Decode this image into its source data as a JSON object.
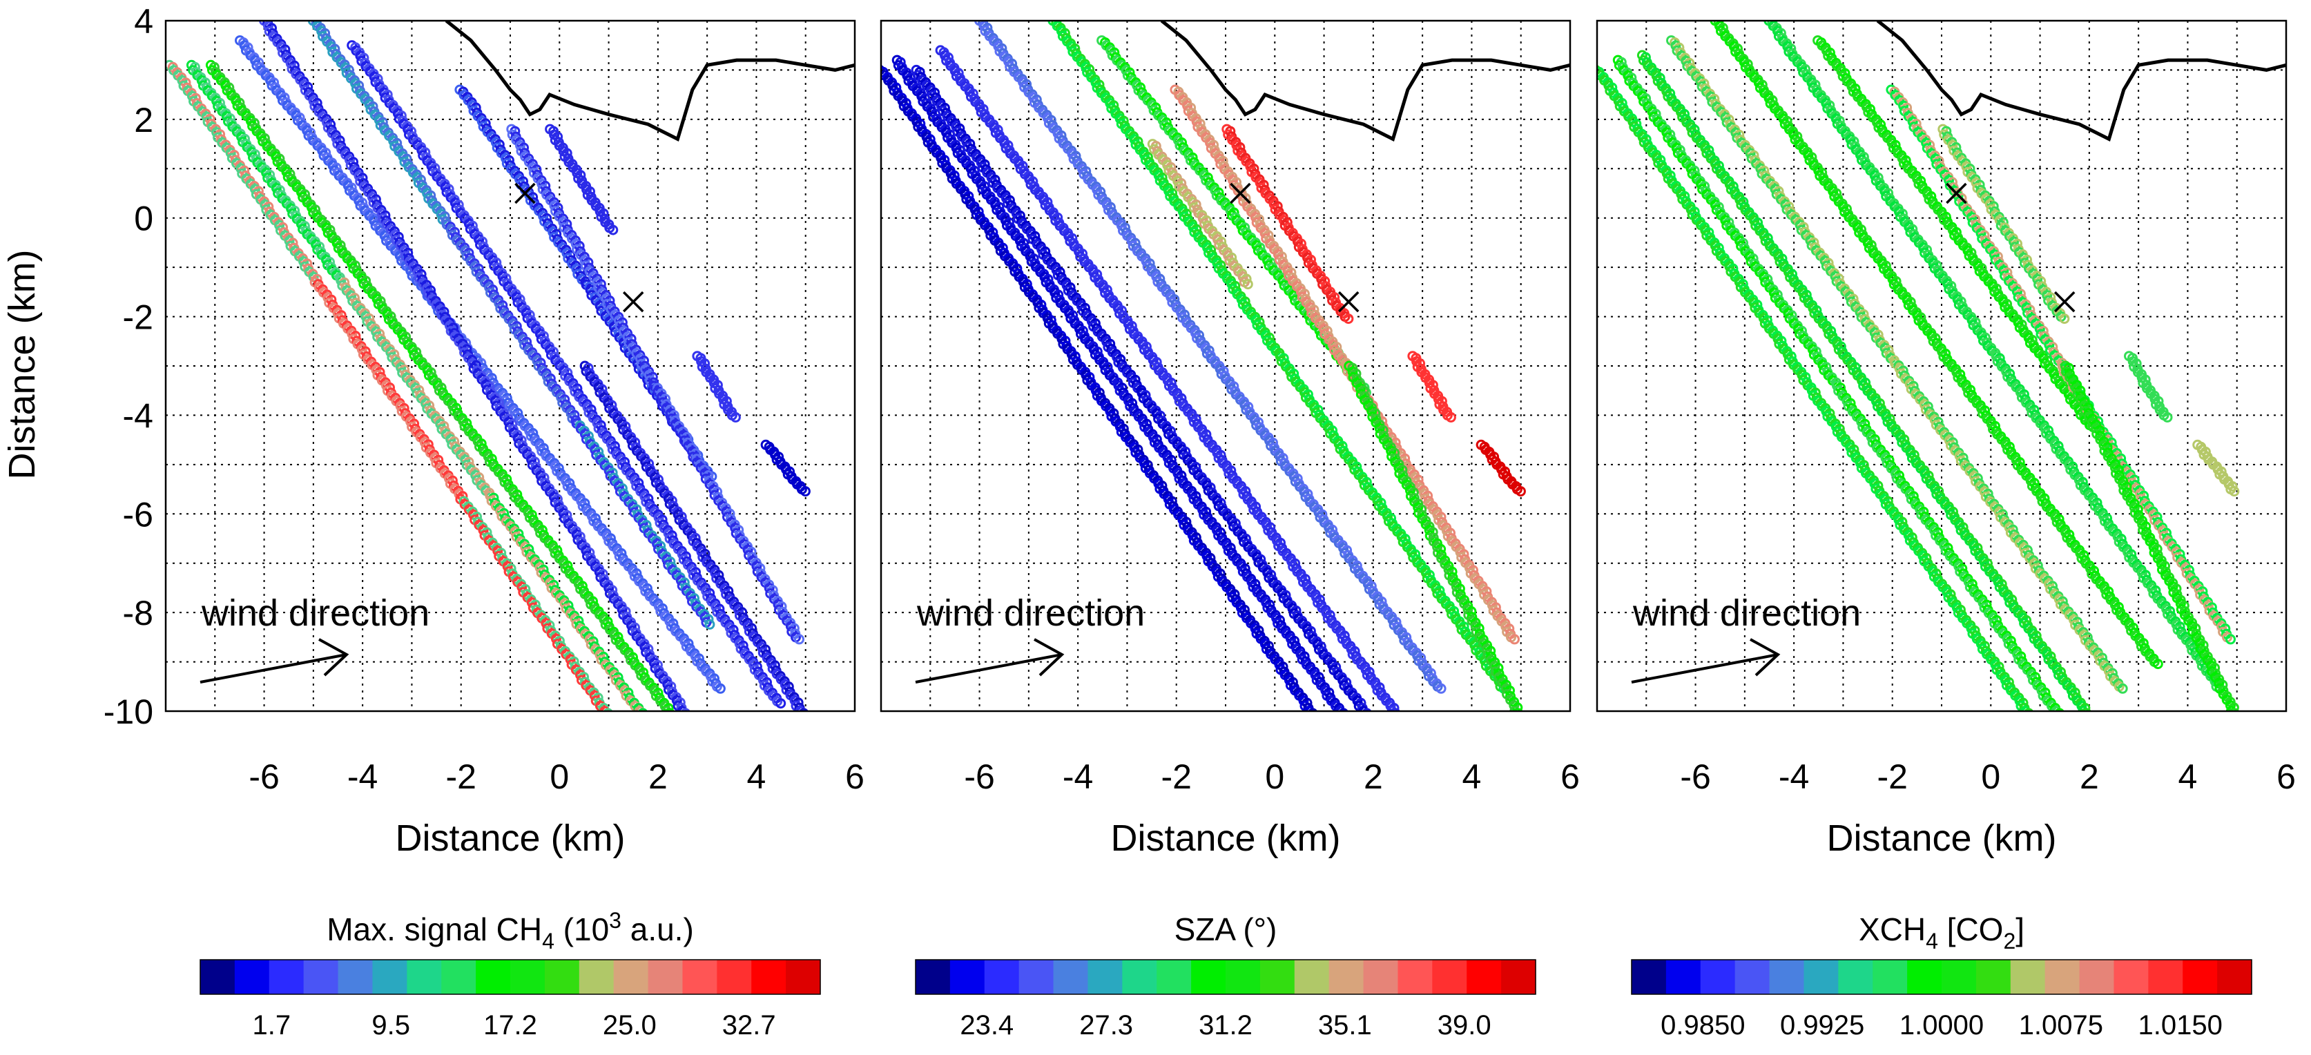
{
  "chart_data": [
    {
      "type": "scatter",
      "panel": "left",
      "xlabel": "Distance (km)",
      "ylabel": "Distance (km)",
      "xlim": [
        -8,
        6
      ],
      "ylim": [
        -10,
        4
      ],
      "xticks": [
        "-6",
        "-4",
        "-2",
        "0",
        "2",
        "4",
        "6"
      ],
      "yticks": [
        "4",
        "2",
        "0",
        "-2",
        "-4",
        "-6",
        "-8",
        "-10"
      ],
      "grid": true,
      "colorbar": {
        "title_pre": "Max. signal CH",
        "title_sub": "4",
        "title_mid": " (10",
        "title_sup": "3",
        "title_post": " a.u.)",
        "ticks": [
          "1.7",
          "9.5",
          "17.2",
          "25.0",
          "32.7"
        ]
      },
      "annotation": "wind direction",
      "sources": [
        {
          "x": -0.7,
          "y": 0.5
        },
        {
          "x": 1.5,
          "y": -1.7
        }
      ],
      "coastline": [
        [
          -2.3,
          4
        ],
        [
          -1.8,
          3.6
        ],
        [
          -1.3,
          3.0
        ],
        [
          -1.0,
          2.6
        ],
        [
          -0.8,
          2.4
        ],
        [
          -0.6,
          2.1
        ],
        [
          -0.4,
          2.2
        ],
        [
          -0.2,
          2.5
        ],
        [
          0.3,
          2.3
        ],
        [
          1.0,
          2.1
        ],
        [
          1.8,
          1.9
        ],
        [
          2.4,
          1.6
        ],
        [
          2.7,
          2.6
        ],
        [
          3.0,
          3.1
        ],
        [
          3.6,
          3.2
        ],
        [
          4.4,
          3.2
        ],
        [
          5.0,
          3.1
        ],
        [
          5.6,
          3.0
        ],
        [
          6,
          3.1
        ]
      ],
      "tracks": [
        {
          "x0": -7.9,
          "y0": 3.1,
          "x1": 0.9,
          "y1": -10,
          "colors": [
            "#4ed38a",
            "#eb8575",
            "#ff3a3a"
          ]
        },
        {
          "x0": -7.5,
          "y0": 3.1,
          "x1": 1.6,
          "y1": -10,
          "colors": [
            "#00e53c",
            "#4ed38a",
            "#d6a27b"
          ]
        },
        {
          "x0": -7.1,
          "y0": 3.1,
          "x1": 2.2,
          "y1": -10,
          "colors": [
            "#00ee00",
            "#33cc33"
          ]
        },
        {
          "x0": -6.5,
          "y0": 3.6,
          "x1": 3.2,
          "y1": -9.5,
          "colors": [
            "#3b5ef0",
            "#5b6ff5"
          ]
        },
        {
          "x0": -6.0,
          "y0": 4.0,
          "x1": 2.5,
          "y1": -10,
          "colors": [
            "#4a4ff0",
            "#1a1ae0"
          ]
        },
        {
          "x0": -5.0,
          "y0": 4.0,
          "x1": 3.0,
          "y1": -8.2,
          "colors": [
            "#2a9fc0",
            "#4a6ee0",
            "#3333ee"
          ]
        },
        {
          "x0": -4.2,
          "y0": 3.5,
          "x1": 4.4,
          "y1": -9.8,
          "colors": [
            "#1f1fe8",
            "#4a4ff0"
          ]
        },
        {
          "x0": -2.0,
          "y0": 2.6,
          "x1": 3.0,
          "y1": -5.2,
          "colors": [
            "#3b5ef0",
            "#1a1ae0"
          ]
        },
        {
          "x0": -1.0,
          "y0": 1.8,
          "x1": 4.8,
          "y1": -8.5,
          "colors": [
            "#5b6ff5",
            "#2a2ae8"
          ]
        },
        {
          "x0": 0.5,
          "y0": -3.0,
          "x1": 4.9,
          "y1": -10,
          "colors": [
            "#1010cc",
            "#3333ee"
          ]
        },
        {
          "x0": -0.2,
          "y0": 1.8,
          "x1": 1.0,
          "y1": -0.2,
          "colors": [
            "#2a2ae8"
          ]
        },
        {
          "x0": 2.8,
          "y0": -2.8,
          "x1": 3.5,
          "y1": -4.0,
          "colors": [
            "#3333ee"
          ]
        },
        {
          "x0": 4.2,
          "y0": -4.6,
          "x1": 4.9,
          "y1": -5.5,
          "colors": [
            "#0000cc"
          ]
        }
      ]
    },
    {
      "type": "scatter",
      "panel": "middle",
      "xlabel": "Distance (km)",
      "xlim": [
        -8,
        6
      ],
      "ylim": [
        -10,
        4
      ],
      "xticks": [
        "-6",
        "-4",
        "-2",
        "0",
        "2",
        "4",
        "6"
      ],
      "grid": true,
      "colorbar": {
        "title_pre": "SZA (°)",
        "ticks": [
          "23.4",
          "27.3",
          "31.2",
          "35.1",
          "39.0"
        ]
      },
      "annotation": "wind direction",
      "sources": [
        {
          "x": -0.7,
          "y": 0.5
        },
        {
          "x": 1.5,
          "y": -1.7
        }
      ],
      "coastline": [
        [
          -2.3,
          4
        ],
        [
          -1.8,
          3.6
        ],
        [
          -1.3,
          3.0
        ],
        [
          -1.0,
          2.6
        ],
        [
          -0.8,
          2.4
        ],
        [
          -0.6,
          2.1
        ],
        [
          -0.4,
          2.2
        ],
        [
          -0.2,
          2.5
        ],
        [
          0.3,
          2.3
        ],
        [
          1.0,
          2.1
        ],
        [
          1.8,
          1.9
        ],
        [
          2.4,
          1.6
        ],
        [
          2.7,
          2.6
        ],
        [
          3.0,
          3.1
        ],
        [
          3.6,
          3.2
        ],
        [
          4.4,
          3.2
        ],
        [
          5.0,
          3.1
        ],
        [
          5.6,
          3.0
        ],
        [
          6,
          3.1
        ]
      ],
      "tracks": [
        {
          "x0": -8.0,
          "y0": 3.0,
          "x1": 0.7,
          "y1": -10,
          "colors": [
            "#0000bb",
            "#0000dd"
          ]
        },
        {
          "x0": -7.7,
          "y0": 3.2,
          "x1": 1.3,
          "y1": -10,
          "colors": [
            "#0000cc",
            "#1010dd"
          ]
        },
        {
          "x0": -7.3,
          "y0": 3.0,
          "x1": 1.8,
          "y1": -10,
          "colors": [
            "#1a1ae0",
            "#0000cc"
          ]
        },
        {
          "x0": -6.8,
          "y0": 3.4,
          "x1": 2.4,
          "y1": -10,
          "colors": [
            "#2a2ae8",
            "#3333ee"
          ]
        },
        {
          "x0": -6.0,
          "y0": 4.0,
          "x1": 3.3,
          "y1": -9.5,
          "colors": [
            "#5b6ff5",
            "#4a6ee0"
          ]
        },
        {
          "x0": -4.5,
          "y0": 4.0,
          "x1": 4.6,
          "y1": -9.5,
          "colors": [
            "#00ee44",
            "#22dd22"
          ]
        },
        {
          "x0": -3.5,
          "y0": 3.6,
          "x1": 1.8,
          "y1": -3.5,
          "colors": [
            "#33dd55",
            "#00ee00"
          ]
        },
        {
          "x0": -2.0,
          "y0": 2.6,
          "x1": 4.8,
          "y1": -8.5,
          "colors": [
            "#eb8575",
            "#d6a27b"
          ]
        },
        {
          "x0": -1.0,
          "y0": 1.8,
          "x1": 1.4,
          "y1": -2.0,
          "colors": [
            "#ff3333",
            "#ee2222"
          ]
        },
        {
          "x0": -2.5,
          "y0": 1.5,
          "x1": -0.6,
          "y1": -1.3,
          "colors": [
            "#b5c868",
            "#d6a27b"
          ]
        },
        {
          "x0": 1.5,
          "y0": -3.0,
          "x1": 4.9,
          "y1": -10,
          "colors": [
            "#00ee00",
            "#33cc33"
          ]
        },
        {
          "x0": 2.8,
          "y0": -2.8,
          "x1": 3.5,
          "y1": -4.0,
          "colors": [
            "#ff3333"
          ]
        },
        {
          "x0": 4.2,
          "y0": -4.6,
          "x1": 4.9,
          "y1": -5.5,
          "colors": [
            "#dd0000"
          ]
        }
      ]
    },
    {
      "type": "scatter",
      "panel": "right",
      "xlabel": "Distance (km)",
      "xlim": [
        -8,
        6
      ],
      "ylim": [
        -10,
        4
      ],
      "xticks": [
        "-6",
        "-4",
        "-2",
        "0",
        "2",
        "4",
        "6"
      ],
      "grid": true,
      "colorbar": {
        "title_pre": "XCH",
        "title_sub": "4",
        "title_mid": " [CO",
        "title_sub2": "2",
        "title_post": "]",
        "ticks": [
          "0.9850",
          "0.9925",
          "1.0000",
          "1.0075",
          "1.0150"
        ]
      },
      "annotation": "wind direction",
      "sources": [
        {
          "x": -0.7,
          "y": 0.5
        },
        {
          "x": 1.5,
          "y": -1.7
        }
      ],
      "coastline": [
        [
          -2.3,
          4
        ],
        [
          -1.8,
          3.6
        ],
        [
          -1.3,
          3.0
        ],
        [
          -1.0,
          2.6
        ],
        [
          -0.8,
          2.4
        ],
        [
          -0.6,
          2.1
        ],
        [
          -0.4,
          2.2
        ],
        [
          -0.2,
          2.5
        ],
        [
          0.3,
          2.3
        ],
        [
          1.0,
          2.1
        ],
        [
          1.8,
          1.9
        ],
        [
          2.4,
          1.6
        ],
        [
          2.7,
          2.6
        ],
        [
          3.0,
          3.1
        ],
        [
          3.6,
          3.2
        ],
        [
          4.4,
          3.2
        ],
        [
          5.0,
          3.1
        ],
        [
          5.6,
          3.0
        ],
        [
          6,
          3.1
        ]
      ],
      "tracks": [
        {
          "x0": -8.0,
          "y0": 3.0,
          "x1": 0.7,
          "y1": -10,
          "colors": [
            "#22dd22",
            "#00ee44"
          ]
        },
        {
          "x0": -7.6,
          "y0": 3.2,
          "x1": 1.3,
          "y1": -10,
          "colors": [
            "#00ee00",
            "#33dd55"
          ]
        },
        {
          "x0": -7.1,
          "y0": 3.3,
          "x1": 1.9,
          "y1": -10,
          "colors": [
            "#22dd22",
            "#00e53c"
          ]
        },
        {
          "x0": -6.5,
          "y0": 3.6,
          "x1": 2.6,
          "y1": -9.5,
          "colors": [
            "#33dd55",
            "#b5c868"
          ]
        },
        {
          "x0": -5.6,
          "y0": 4.0,
          "x1": 3.3,
          "y1": -9.0,
          "colors": [
            "#00ee00",
            "#22dd22"
          ]
        },
        {
          "x0": -4.5,
          "y0": 4.0,
          "x1": 4.6,
          "y1": -9.5,
          "colors": [
            "#00e53c",
            "#33dd55"
          ]
        },
        {
          "x0": -3.5,
          "y0": 3.6,
          "x1": 2.0,
          "y1": -4.2,
          "colors": [
            "#22dd22",
            "#00ee00"
          ]
        },
        {
          "x0": -2.0,
          "y0": 2.6,
          "x1": 4.8,
          "y1": -8.5,
          "colors": [
            "#00ee44",
            "#d6a27b"
          ]
        },
        {
          "x0": -1.0,
          "y0": 1.8,
          "x1": 1.4,
          "y1": -2.0,
          "colors": [
            "#b5c868",
            "#33dd55"
          ]
        },
        {
          "x0": 1.5,
          "y0": -3.0,
          "x1": 4.9,
          "y1": -10,
          "colors": [
            "#22dd22",
            "#00ee00"
          ]
        },
        {
          "x0": 2.8,
          "y0": -2.8,
          "x1": 3.5,
          "y1": -4.0,
          "colors": [
            "#33dd55"
          ]
        },
        {
          "x0": 4.2,
          "y0": -4.6,
          "x1": 4.9,
          "y1": -5.5,
          "colors": [
            "#b5c868"
          ]
        }
      ]
    }
  ],
  "colorbar_colors": [
    "#00008b",
    "#0000ee",
    "#2b2bff",
    "#4a55f5",
    "#4a80e0",
    "#2aa8c0",
    "#1ed68a",
    "#22e060",
    "#00ee00",
    "#11e611",
    "#33dd11",
    "#b0c868",
    "#d8a47c",
    "#e68478",
    "#ff5555",
    "#ff3030",
    "#ff0000",
    "#dd0000"
  ]
}
